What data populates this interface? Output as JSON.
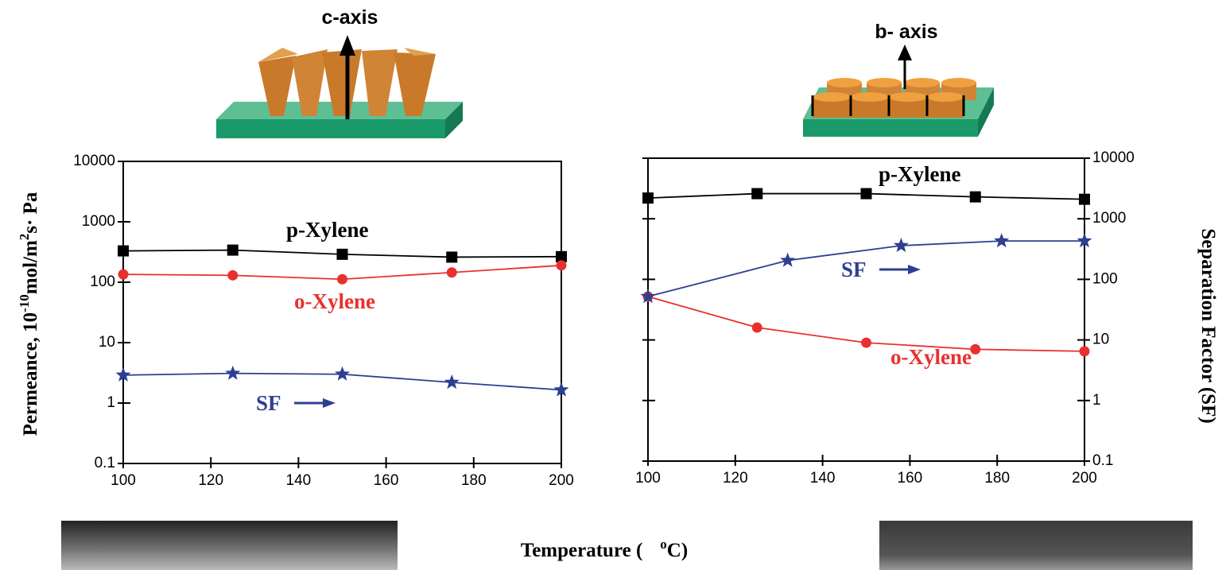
{
  "chart_data": [
    {
      "type": "line",
      "log_y": true,
      "xlim": [
        100,
        200
      ],
      "xticks": [
        100,
        120,
        140,
        160,
        180,
        200
      ],
      "ylim": [
        0.1,
        10000
      ],
      "yticks": [
        0.1,
        1,
        10,
        100,
        1000,
        10000
      ],
      "ylabel": [
        "Permeance, 10",
        "-10",
        "mol/m",
        "2",
        "s· Pa"
      ],
      "xlabel": [
        "Temperature (",
        "o",
        "C)"
      ],
      "schematic_label": "c-axis",
      "series": [
        {
          "name": "p-Xylene",
          "color": "#000000",
          "marker": "square",
          "x": [
            100,
            125,
            150,
            175,
            200
          ],
          "values": [
            330,
            340,
            290,
            260,
            265
          ]
        },
        {
          "name": "o-Xylene",
          "color": "#e8312f",
          "marker": "circle",
          "x": [
            100,
            125,
            150,
            175,
            200
          ],
          "values": [
            135,
            130,
            112,
            145,
            190
          ]
        },
        {
          "name": "SF",
          "color": "#2e3f92",
          "marker": "star",
          "x": [
            100,
            125,
            150,
            175,
            200
          ],
          "values": [
            2.9,
            3.1,
            3.0,
            2.2,
            1.65
          ]
        }
      ]
    },
    {
      "type": "line",
      "log_y": true,
      "xlim": [
        100,
        200
      ],
      "xticks": [
        100,
        120,
        140,
        160,
        180,
        200
      ],
      "y2lim": [
        0.1,
        10000
      ],
      "y2ticks": [
        0.1,
        1,
        10,
        100,
        1000,
        10000
      ],
      "y2label": "Separation Factor (SF)",
      "schematic_label": "b- axis",
      "series": [
        {
          "name": "p-Xylene",
          "color": "#000000",
          "marker": "square",
          "axis": "y2",
          "x": [
            100,
            125,
            150,
            175,
            200
          ],
          "values": [
            2200,
            2600,
            2600,
            2300,
            2100
          ]
        },
        {
          "name": "o-Xylene",
          "color": "#e8312f",
          "marker": "circle",
          "axis": "y2",
          "x": [
            100,
            125,
            150,
            175,
            200
          ],
          "values": [
            52,
            16,
            9,
            7,
            6.5
          ]
        },
        {
          "name": "SF",
          "color": "#2e3f92",
          "marker": "star",
          "axis": "y2",
          "x": [
            100,
            132,
            158,
            181,
            200
          ],
          "values": [
            52,
            205,
            360,
            430,
            430
          ]
        }
      ]
    }
  ]
}
